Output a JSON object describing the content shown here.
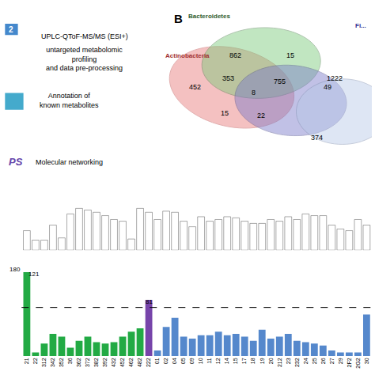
{
  "chart_data": [
    {
      "type": "venn",
      "title": "B",
      "series": [
        {
          "name": "Actinobacteria",
          "color": "#E87878"
        },
        {
          "name": "Bacteroidetes",
          "color": "#78C878"
        },
        {
          "name": "Fi...",
          "color": "#7878C8"
        },
        {
          "name": null,
          "color": "#B8C8E8"
        }
      ],
      "values": [
        452,
        862,
        353,
        15,
        8,
        15,
        755,
        22,
        49,
        1222,
        374
      ],
      "data_labels": true,
      "annotations": [
        "UPLC-QToF-MS/MS (ESI+)",
        "untargeted metabolomic\nprofiling\nand data pre-processing",
        "Annotation of\nknown metabolites",
        "Molecular networking",
        "2",
        "PS"
      ]
    },
    {
      "type": "bar",
      "categories": [
        "21",
        "22",
        "312",
        "342",
        "352",
        "36",
        "362",
        "372",
        "382",
        "392",
        "432",
        "452",
        "462",
        "482",
        "222",
        "01",
        "02",
        "04",
        "05",
        "09",
        "10",
        "11",
        "12",
        "14",
        "15",
        "17",
        "18",
        "19",
        "20",
        "212",
        "23",
        "232",
        "24",
        "25",
        "26",
        "27",
        "29",
        "2F2",
        "2G2",
        "30"
      ],
      "values": [
        35,
        18,
        18,
        45,
        22,
        65,
        75,
        72,
        68,
        62,
        55,
        52,
        20,
        75,
        68,
        55,
        70,
        68,
        52,
        42,
        60,
        52,
        55,
        60,
        58,
        52,
        48,
        48,
        55,
        52,
        60,
        55,
        65,
        62,
        62,
        45,
        38,
        35,
        55,
        45
      ],
      "color": "#FFFFFF",
      "ylim": [
        0,
        95
      ],
      "grid": false,
      "tick_labels": false
    },
    {
      "type": "bar",
      "categories": [
        "21",
        "22",
        "312",
        "342",
        "352",
        "36",
        "362",
        "372",
        "382",
        "392",
        "432",
        "452",
        "462",
        "482",
        "222",
        "01",
        "02",
        "04",
        "05",
        "09",
        "10",
        "11",
        "12",
        "14",
        "15",
        "17",
        "18",
        "19",
        "20",
        "212",
        "23",
        "232",
        "24",
        "25",
        "26",
        "27",
        "29",
        "2F2",
        "2G2",
        "30"
      ],
      "values": [
        121,
        5,
        18,
        32,
        28,
        12,
        22,
        28,
        20,
        18,
        20,
        28,
        35,
        40,
        81,
        8,
        42,
        55,
        28,
        25,
        30,
        30,
        35,
        30,
        32,
        28,
        22,
        38,
        25,
        28,
        32,
        22,
        20,
        18,
        15,
        8,
        5,
        5,
        5,
        60
      ],
      "colors": [
        "#22AA44",
        "#22AA44",
        "#22AA44",
        "#22AA44",
        "#22AA44",
        "#22AA44",
        "#22AA44",
        "#22AA44",
        "#22AA44",
        "#22AA44",
        "#22AA44",
        "#22AA44",
        "#22AA44",
        "#22AA44",
        "#7744AA",
        "#5588CC",
        "#5588CC",
        "#5588CC",
        "#5588CC",
        "#5588CC",
        "#5588CC",
        "#5588CC",
        "#5588CC",
        "#5588CC",
        "#5588CC",
        "#5588CC",
        "#5588CC",
        "#5588CC",
        "#5588CC",
        "#5588CC",
        "#5588CC",
        "#5588CC",
        "#5588CC",
        "#5588CC",
        "#5588CC",
        "#5588CC",
        "#5588CC",
        "#5588CC",
        "#5588CC",
        "#5588CC"
      ],
      "ylim": [
        0,
        145
      ],
      "hline": 70,
      "annotations": [
        {
          "text": "180",
          "x": -0.5,
          "y": 132
        },
        {
          "text": "121",
          "x": 0,
          "y": 125
        },
        {
          "text": "81",
          "x": 14,
          "y": 85
        }
      ],
      "grid": false,
      "tick_labels": "x"
    }
  ]
}
